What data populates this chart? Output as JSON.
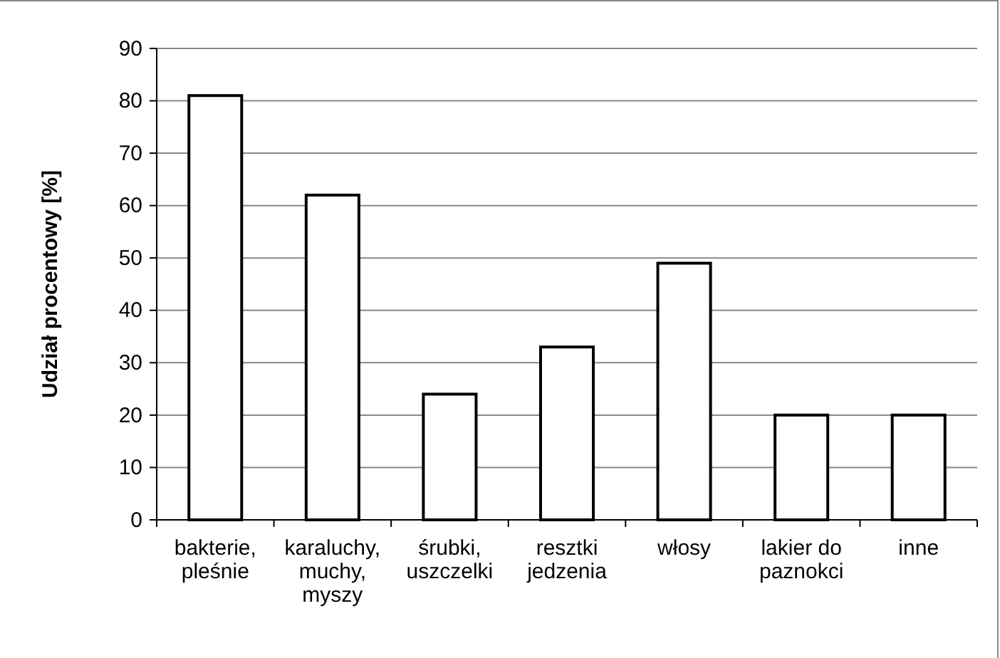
{
  "chart_data": {
    "type": "bar",
    "ylabel": "Udział procentowy [%]",
    "categories": [
      "bakterie, pleśnie",
      "karaluchy, muchy, myszy",
      "śrubki, uszczelki",
      "resztki jedzenia",
      "włosy",
      "lakier do paznokci",
      "inne"
    ],
    "values": [
      81,
      62,
      24,
      33,
      49,
      20,
      20
    ],
    "color": "#ffffff",
    "ylim": [
      0,
      90
    ],
    "yticks": [
      0,
      10,
      20,
      30,
      40,
      50,
      60,
      70,
      80,
      90
    ],
    "grid": "y"
  }
}
